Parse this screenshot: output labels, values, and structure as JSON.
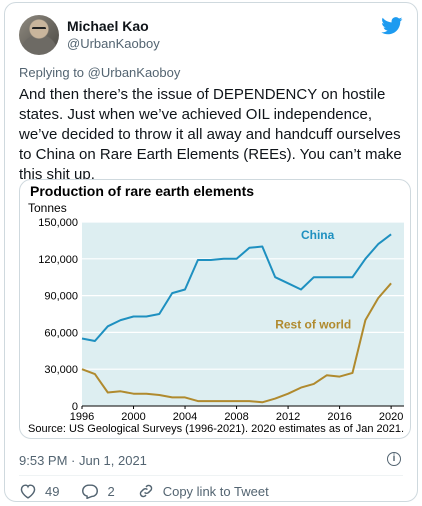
{
  "tweet": {
    "author_name": "Michael Kao",
    "author_handle": "@UrbanKaoboy",
    "reply_prefix": "Replying to",
    "reply_to": "@UrbanKaoboy",
    "text": "And then there’s the issue of DEPENDENCY on hostile states. Just when we’ve achieved OIL independence, we’ve decided to throw it all away and handcuff ourselves to China on Rare Earth Elements (REEs). You can’t make this shit up.",
    "timestamp": "9:53 PM · Jun 1, 2021",
    "info_symbol": "i",
    "likes": "49",
    "replies": "2",
    "copy_link": "Copy link to Tweet",
    "icons": [
      "twitter-bird-icon",
      "info-icon",
      "heart-icon",
      "reply-icon",
      "link-icon"
    ],
    "colors": {
      "brand": "#1d9bf0",
      "china": "#1e90c0",
      "rest": "#b08a2e",
      "plot_bg": "#ddeef1"
    }
  },
  "chart_data": {
    "type": "line",
    "title": "Production of rare earth elements",
    "ylabel": "Tonnes",
    "xlabel": "",
    "ylim": [
      0,
      150000
    ],
    "xlim": [
      1996,
      2021
    ],
    "yticks": [
      0,
      30000,
      60000,
      90000,
      120000,
      150000
    ],
    "ytick_labels": [
      "0",
      "30,000",
      "60,000",
      "90,000",
      "120,000",
      "150,000"
    ],
    "xticks": [
      1996,
      2000,
      2004,
      2008,
      2012,
      2016,
      2020
    ],
    "xtick_labels": [
      "1996",
      "2000",
      "2004",
      "2008",
      "2012",
      "2016",
      "2020"
    ],
    "grid": true,
    "source": "Source: US Geological Surveys (1996-2021). 2020 estimates as of Jan 2021.",
    "series": [
      {
        "name": "China",
        "x": [
          1996,
          1997,
          1998,
          1999,
          2000,
          2001,
          2002,
          2003,
          2004,
          2005,
          2006,
          2007,
          2008,
          2009,
          2010,
          2011,
          2012,
          2013,
          2014,
          2015,
          2016,
          2017,
          2018,
          2019,
          2020
        ],
        "values": [
          55000,
          53000,
          65000,
          70000,
          73000,
          73000,
          75000,
          92000,
          95000,
          119000,
          119000,
          120000,
          120000,
          129000,
          130000,
          105000,
          100000,
          95000,
          105000,
          105000,
          105000,
          105000,
          120000,
          132000,
          140000
        ]
      },
      {
        "name": "Rest of world",
        "x": [
          1996,
          1997,
          1998,
          1999,
          2000,
          2001,
          2002,
          2003,
          2004,
          2005,
          2006,
          2007,
          2008,
          2009,
          2010,
          2011,
          2012,
          2013,
          2014,
          2015,
          2016,
          2017,
          2018,
          2019,
          2020
        ],
        "values": [
          30000,
          26000,
          11000,
          12000,
          10000,
          10000,
          9000,
          7000,
          7000,
          4000,
          4000,
          4000,
          4000,
          4000,
          3000,
          6000,
          10000,
          15000,
          18000,
          25000,
          24000,
          27000,
          70000,
          88000,
          100000
        ]
      }
    ]
  }
}
